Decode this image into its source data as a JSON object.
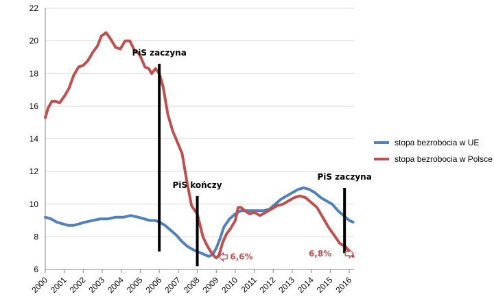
{
  "chart_data": {
    "type": "line",
    "title": "",
    "xlabel": "",
    "ylabel": "",
    "ylim": [
      6,
      22
    ],
    "xlim": [
      2000,
      2016.25
    ],
    "y_ticks": [
      6,
      8,
      10,
      12,
      14,
      16,
      18,
      20,
      22
    ],
    "x_tick_labels": [
      "2000",
      "2001",
      "2002",
      "2003",
      "2004",
      "2005",
      "2006",
      "2007",
      "2008",
      "2009",
      "2010",
      "2011",
      "2012",
      "2013",
      "2014",
      "2015",
      "2016"
    ],
    "grid": "horizontal",
    "legend_position": "right",
    "series": [
      {
        "name": "stopa bezrobocia w UE",
        "color": "#4f81bd",
        "x": [
          2000.0,
          2000.3,
          2000.6,
          2000.9,
          2001.2,
          2001.5,
          2001.8,
          2002.1,
          2002.5,
          2002.9,
          2003.3,
          2003.7,
          2004.1,
          2004.5,
          2004.9,
          2005.2,
          2005.5,
          2005.8,
          2006.0,
          2006.3,
          2006.6,
          2006.9,
          2007.2,
          2007.5,
          2007.8,
          2008.0,
          2008.2,
          2008.4,
          2008.6,
          2008.8,
          2009.0,
          2009.2,
          2009.4,
          2009.7,
          2010.0,
          2010.3,
          2010.6,
          2010.9,
          2011.2,
          2011.5,
          2011.8,
          2012.1,
          2012.4,
          2012.7,
          2013.0,
          2013.3,
          2013.6,
          2013.9,
          2014.2,
          2014.5,
          2014.8,
          2015.1,
          2015.4,
          2015.7,
          2016.0,
          2016.2
        ],
        "values": [
          9.2,
          9.1,
          8.9,
          8.8,
          8.7,
          8.7,
          8.8,
          8.9,
          9.0,
          9.1,
          9.1,
          9.2,
          9.2,
          9.3,
          9.2,
          9.1,
          9.0,
          9.0,
          8.9,
          8.7,
          8.4,
          8.1,
          7.7,
          7.4,
          7.2,
          7.1,
          7.0,
          6.9,
          6.8,
          6.9,
          7.3,
          7.9,
          8.6,
          9.1,
          9.4,
          9.6,
          9.6,
          9.6,
          9.6,
          9.6,
          9.7,
          10.0,
          10.3,
          10.5,
          10.7,
          10.9,
          11.0,
          10.9,
          10.7,
          10.4,
          10.2,
          10.0,
          9.6,
          9.3,
          9.0,
          8.9
        ]
      },
      {
        "name": "stopa bezrobocia w Polsce",
        "color": "#c0504d",
        "x": [
          2000.0,
          2000.15,
          2000.35,
          2000.55,
          2000.75,
          2001.0,
          2001.25,
          2001.5,
          2001.75,
          2002.0,
          2002.25,
          2002.5,
          2002.75,
          2002.95,
          2003.2,
          2003.45,
          2003.7,
          2003.95,
          2004.2,
          2004.45,
          2004.7,
          2004.95,
          2005.1,
          2005.25,
          2005.45,
          2005.6,
          2005.8,
          2006.0,
          2006.2,
          2006.45,
          2006.7,
          2006.95,
          2007.2,
          2007.45,
          2007.7,
          2008.0,
          2008.15,
          2008.3,
          2008.5,
          2008.7,
          2008.9,
          2009.0,
          2009.15,
          2009.35,
          2009.55,
          2009.75,
          2010.0,
          2010.15,
          2010.3,
          2010.5,
          2010.75,
          2011.0,
          2011.3,
          2011.6,
          2011.9,
          2012.2,
          2012.5,
          2012.8,
          2013.1,
          2013.4,
          2013.7,
          2014.0,
          2014.3,
          2014.6,
          2014.9,
          2015.2,
          2015.5,
          2015.8,
          2016.0,
          2016.2
        ],
        "values": [
          15.3,
          15.9,
          16.3,
          16.3,
          16.2,
          16.6,
          17.1,
          17.9,
          18.4,
          18.5,
          18.8,
          19.3,
          19.7,
          20.3,
          20.5,
          20.1,
          19.6,
          19.5,
          20.0,
          20.0,
          19.4,
          19.2,
          18.8,
          18.4,
          18.3,
          18.0,
          18.3,
          18.0,
          17.2,
          15.5,
          14.5,
          13.8,
          13.1,
          11.4,
          9.9,
          9.4,
          8.7,
          8.0,
          7.5,
          7.1,
          6.8,
          6.7,
          6.9,
          7.7,
          8.2,
          8.5,
          9.0,
          9.8,
          9.8,
          9.6,
          9.4,
          9.5,
          9.3,
          9.5,
          9.7,
          9.9,
          10.0,
          10.2,
          10.4,
          10.5,
          10.4,
          10.1,
          9.8,
          9.2,
          8.6,
          8.1,
          7.6,
          7.4,
          7.1,
          6.8
        ]
      }
    ],
    "annotations": [
      {
        "text": "PiS zaczyna",
        "year": 2006.0,
        "line_from": 7.1,
        "line_to": 18.6
      },
      {
        "text": "PiS kończy",
        "year": 2008.0,
        "line_from": 6.2,
        "line_to": 10.5
      },
      {
        "text": "PiS zaczyna",
        "year": 2015.75,
        "line_from": 7.0,
        "line_to": 11.0
      }
    ],
    "value_labels": [
      {
        "text": "6,6%",
        "year": 2009.0,
        "value": 6.6
      },
      {
        "text": "6,8%",
        "year": 2015.5,
        "value": 6.8
      }
    ]
  }
}
